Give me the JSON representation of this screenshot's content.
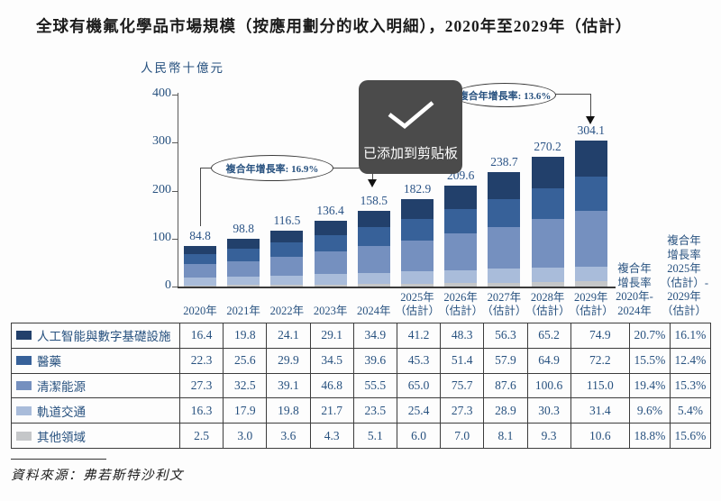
{
  "page": {
    "title": "全球有機氟化學品市場規模（按應用劃分的收入明細），2020年至2029年（估計）",
    "source": "資料來源：弗若斯特沙利文"
  },
  "toast": {
    "icon": "checkmark-icon",
    "message": "已添加到剪贴板"
  },
  "chart_data": {
    "type": "bar",
    "stacked": true,
    "title": "全球有機氟化學品市場規模（按應用劃分的收入明細），2020年至2029年（估計）",
    "unit_label": "人民幣十億元",
    "ylim": [
      0,
      400
    ],
    "yticks": [
      400,
      300,
      200,
      100,
      0
    ],
    "grid": false,
    "legend_position": "table-left",
    "categories": [
      "2020年",
      "2021年",
      "2022年",
      "2023年",
      "2024年",
      "2025年（估計）",
      "2026年（估計）",
      "2027年（估計）",
      "2028年（估計）",
      "2029年（估計）"
    ],
    "category_lines": [
      [
        "",
        "2020年"
      ],
      [
        "",
        "2021年"
      ],
      [
        "",
        "2022年"
      ],
      [
        "",
        "2023年"
      ],
      [
        "",
        "2024年"
      ],
      [
        "2025年",
        "（估計）"
      ],
      [
        "2026年",
        "（估計）"
      ],
      [
        "2027年",
        "（估計）"
      ],
      [
        "2028年",
        "（估計）"
      ],
      [
        "2029年",
        "（估計）"
      ]
    ],
    "totals": [
      84.8,
      98.8,
      116.5,
      136.4,
      158.5,
      182.9,
      209.6,
      238.7,
      270.2,
      304.1
    ],
    "series": [
      {
        "name": "人工智能與數字基礎設施",
        "color": "#22406b",
        "values": [
          16.4,
          19.8,
          24.1,
          29.1,
          34.9,
          41.2,
          48.3,
          56.3,
          65.2,
          74.9
        ],
        "cagr": [
          "20.7%",
          "16.1%"
        ]
      },
      {
        "name": "醫藥",
        "color": "#376199",
        "values": [
          22.3,
          25.6,
          29.9,
          34.5,
          39.6,
          45.3,
          51.4,
          57.9,
          64.9,
          72.2
        ],
        "cagr": [
          "15.5%",
          "12.4%"
        ]
      },
      {
        "name": "清潔能源",
        "color": "#7590bf",
        "values": [
          27.3,
          32.5,
          39.1,
          46.8,
          55.5,
          65.0,
          75.7,
          87.6,
          100.6,
          115.0
        ],
        "cagr": [
          "19.4%",
          "15.3%"
        ]
      },
      {
        "name": "軌道交通",
        "color": "#a9bcda",
        "values": [
          16.3,
          17.9,
          19.8,
          21.7,
          23.5,
          25.4,
          27.3,
          28.9,
          30.3,
          31.4
        ],
        "cagr": [
          "9.6%",
          "5.4%"
        ]
      },
      {
        "name": "其他領域",
        "color": "#c5c7c9",
        "values": [
          2.5,
          3.0,
          3.6,
          4.3,
          5.1,
          6.0,
          7.0,
          8.1,
          9.3,
          10.6
        ],
        "cagr": [
          "18.8%",
          "15.6%"
        ]
      }
    ],
    "annotations": [
      {
        "text": "複合年增長率: 16.9%",
        "target": "2024年"
      },
      {
        "text": "複合年增長率: 13.6%",
        "target": "2029年（估計）"
      }
    ],
    "cagr_column_headers": [
      {
        "lines": [
          "複合年",
          "增長率",
          "2020年-",
          "2024年"
        ]
      },
      {
        "lines": [
          "複合年",
          "增長率",
          "2025年",
          "（估計）-",
          "2029年",
          "（估計）"
        ]
      }
    ]
  }
}
